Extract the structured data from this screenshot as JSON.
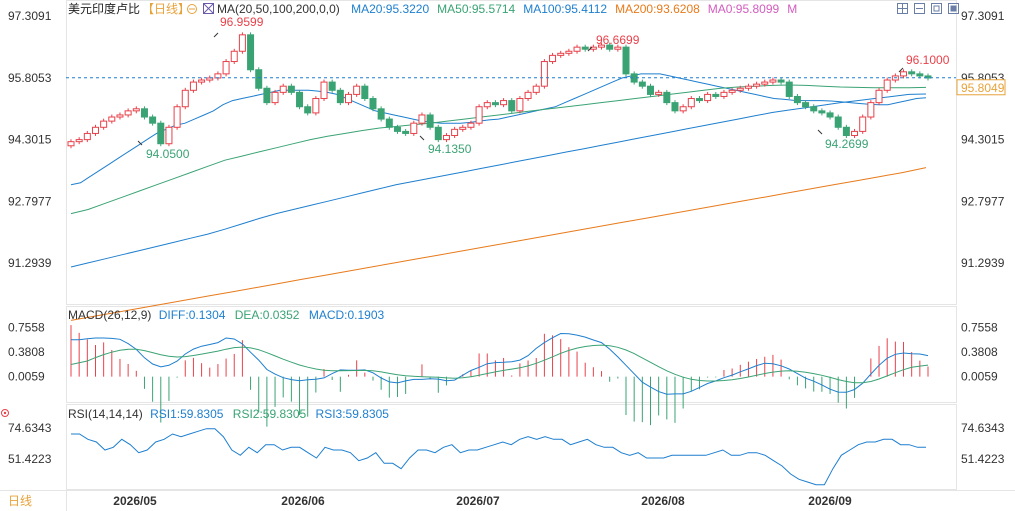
{
  "header": {
    "title": "美元印度卢比",
    "period": "日线",
    "ma_label": "MA(20,50,100,200,0,0)",
    "ma_values": [
      {
        "text": "MA20:95.3220",
        "color": "#1e7fcf"
      },
      {
        "text": "MA50:95.5714",
        "color": "#3aa374"
      },
      {
        "text": "MA100:95.4112",
        "color": "#1e7fcf"
      },
      {
        "text": "MA200:93.6208",
        "color": "#e87a1a"
      },
      {
        "text": "MA0:95.8099",
        "color": "#d45cbf"
      },
      {
        "text": "M",
        "color": "#d45cbf"
      }
    ]
  },
  "macd": {
    "label": "MACD(26,12,9)",
    "diff": "DIFF:0.1304",
    "dea": "DEA:0.0352",
    "macd": "MACD:0.1903"
  },
  "rsi": {
    "label": "RSI(14,14,14)",
    "rsi1": "RSI1:59.8305",
    "rsi2": "RSI2:59.8305",
    "rsi3": "RSI3:59.8305"
  },
  "bottom_period": "日线",
  "colors": {
    "up": "#e8414a",
    "down": "#3aa374",
    "ma20": "#1e7fcf",
    "ma50": "#3aa374",
    "ma100": "#1e7fcf",
    "ma200": "#e87a1a",
    "accent": "#e8a23a"
  },
  "chart_data": {
    "type": "candlestick",
    "price_axis": [
      "97.3091",
      "95.8053",
      "94.3015",
      "92.7977",
      "91.2939"
    ],
    "price_range": [
      90.3,
      97.6
    ],
    "current_price": "95.8049",
    "dashed_level": "95.8053",
    "x_labels": [
      "2026/05",
      "2026/06",
      "2026/07",
      "2026/08",
      "2026/09"
    ],
    "annotations": [
      {
        "text": "96.9599",
        "type": "high"
      },
      {
        "text": "94.0500",
        "type": "low"
      },
      {
        "text": "94.1350",
        "type": "low"
      },
      {
        "text": "96.6699",
        "type": "high"
      },
      {
        "text": "94.2699",
        "type": "low"
      },
      {
        "text": "96.1000",
        "type": "high"
      }
    ],
    "close": [
      94.25,
      94.3,
      94.45,
      94.6,
      94.75,
      94.85,
      94.9,
      95.0,
      95.05,
      94.85,
      94.7,
      94.2,
      94.6,
      95.1,
      95.5,
      95.7,
      95.75,
      95.8,
      95.9,
      96.2,
      96.45,
      96.85,
      96.0,
      95.55,
      95.2,
      95.45,
      95.6,
      95.45,
      95.1,
      94.95,
      95.3,
      95.7,
      95.5,
      95.2,
      95.4,
      95.6,
      95.3,
      95.05,
      94.8,
      94.6,
      94.5,
      94.45,
      94.7,
      94.9,
      94.6,
      94.3,
      94.4,
      94.55,
      94.6,
      94.7,
      95.1,
      95.2,
      95.15,
      95.25,
      95.0,
      95.3,
      95.45,
      95.6,
      96.2,
      96.35,
      96.4,
      96.45,
      96.55,
      96.5,
      96.55,
      96.6,
      96.5,
      96.55,
      95.9,
      95.7,
      95.6,
      95.4,
      95.45,
      95.2,
      95.0,
      95.1,
      95.3,
      95.25,
      95.4,
      95.35,
      95.45,
      95.5,
      95.55,
      95.6,
      95.65,
      95.7,
      95.75,
      95.7,
      95.35,
      95.2,
      95.1,
      95.0,
      94.95,
      94.85,
      94.6,
      94.4,
      94.5,
      94.85,
      95.2,
      95.5,
      95.75,
      95.85,
      95.95,
      95.9,
      95.85,
      95.8
    ],
    "ma20": [
      93.2,
      93.25,
      93.4,
      93.55,
      93.7,
      93.85,
      94.0,
      94.15,
      94.3,
      94.45,
      94.55,
      94.65,
      94.7,
      94.8,
      94.9,
      95.0,
      95.15,
      95.25,
      95.3,
      95.35,
      95.4,
      95.45,
      95.5,
      95.5,
      95.5,
      95.5,
      95.48,
      95.45,
      95.4,
      95.3,
      95.2,
      95.1,
      95.0,
      94.95,
      94.9,
      94.85,
      94.8,
      94.75,
      94.72,
      94.7,
      94.7,
      94.7,
      94.72,
      94.75,
      94.78,
      94.8,
      94.85,
      94.9,
      94.95,
      95.0,
      95.05,
      95.1,
      95.2,
      95.3,
      95.4,
      95.5,
      95.6,
      95.7,
      95.8,
      95.85,
      95.9,
      95.9,
      95.9,
      95.85,
      95.8,
      95.75,
      95.7,
      95.65,
      95.6,
      95.55,
      95.5,
      95.45,
      95.4,
      95.35,
      95.3,
      95.28,
      95.26,
      95.25,
      95.25,
      95.25,
      95.24,
      95.22,
      95.2,
      95.18,
      95.16,
      95.15,
      95.15,
      95.2,
      95.25,
      95.3,
      95.32
    ],
    "ma50": [
      92.5,
      92.6,
      92.75,
      92.9,
      93.05,
      93.2,
      93.35,
      93.5,
      93.65,
      93.8,
      93.9,
      94.0,
      94.1,
      94.2,
      94.3,
      94.38,
      94.45,
      94.52,
      94.58,
      94.62,
      94.66,
      94.7,
      94.75,
      94.8,
      94.85,
      94.9,
      94.95,
      95.0,
      95.05,
      95.1,
      95.15,
      95.2,
      95.25,
      95.3,
      95.35,
      95.4,
      95.45,
      95.5,
      95.55,
      95.58,
      95.6,
      95.62,
      95.63,
      95.62,
      95.6,
      95.58,
      95.57,
      95.56,
      95.56,
      95.56,
      95.57
    ],
    "ma100": [
      91.2,
      91.3,
      91.4,
      91.5,
      91.6,
      91.7,
      91.8,
      91.9,
      92.0,
      92.12,
      92.25,
      92.38,
      92.5,
      92.6,
      92.7,
      92.8,
      92.9,
      93.0,
      93.1,
      93.2,
      93.28,
      93.36,
      93.44,
      93.52,
      93.6,
      93.68,
      93.76,
      93.84,
      93.92,
      94.0,
      94.08,
      94.16,
      94.24,
      94.32,
      94.4,
      94.48,
      94.56,
      94.64,
      94.72,
      94.8,
      94.88,
      94.96,
      95.02,
      95.08,
      95.14,
      95.2,
      95.25,
      95.3,
      95.35,
      95.4,
      95.41
    ],
    "ma200": [
      89.9,
      90.0,
      90.1,
      90.2,
      90.3,
      90.4,
      90.5,
      90.6,
      90.7,
      90.8,
      90.9,
      91.0,
      91.1,
      91.2,
      91.3,
      91.4,
      91.5,
      91.6,
      91.7,
      91.8,
      91.9,
      92.0,
      92.1,
      92.2,
      92.3,
      92.4,
      92.5,
      92.6,
      92.7,
      92.8,
      92.9,
      93.0,
      93.1,
      93.2,
      93.3,
      93.4,
      93.5,
      93.62
    ],
    "macd_axis": [
      "0.7558",
      "0.3808",
      "0.0059"
    ],
    "rsi_axis": [
      "74.6343",
      "51.4223"
    ],
    "rsi": [
      70,
      70,
      66,
      64,
      58,
      60,
      66,
      62,
      56,
      58,
      64,
      66,
      70,
      68,
      70,
      72,
      74,
      74,
      68,
      58,
      54,
      60,
      56,
      62,
      62,
      58,
      60,
      60,
      56,
      52,
      60,
      58,
      58,
      56,
      50,
      52,
      56,
      48,
      48,
      44,
      52,
      58,
      58,
      56,
      60,
      62,
      56,
      58,
      58,
      60,
      62,
      64,
      62,
      66,
      68,
      66,
      68,
      66,
      66,
      62,
      64,
      66,
      62,
      60,
      60,
      56,
      54,
      56,
      52,
      52,
      52,
      54,
      54,
      54,
      54,
      54,
      56,
      58,
      54,
      54,
      56,
      56,
      54,
      50,
      46,
      40,
      36,
      34,
      32,
      32,
      44,
      54,
      58,
      62,
      64,
      64,
      66,
      66,
      62,
      62,
      60,
      60
    ]
  }
}
